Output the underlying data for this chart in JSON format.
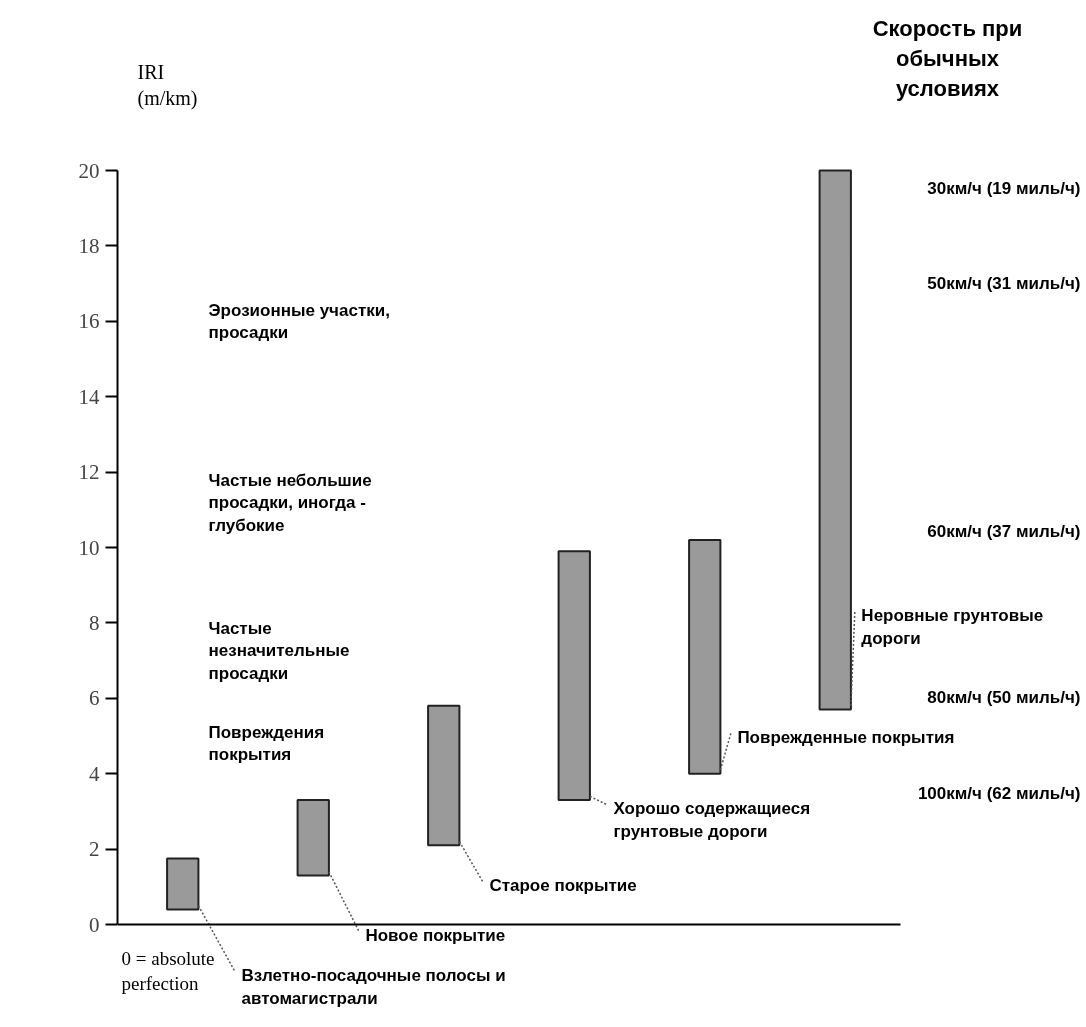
{
  "chart_data": {
    "type": "bar",
    "ylabel": "IRI\n(m/km)",
    "categories": [
      null,
      null,
      null,
      null,
      null,
      null
    ],
    "base": [
      0.4,
      1.3,
      2.1,
      3.3,
      4.0,
      5.7
    ],
    "values": [
      1.35,
      2.0,
      3.7,
      6.6,
      6.2,
      14.3
    ],
    "color": "#9a9a9a",
    "ylim": [
      0,
      20
    ],
    "yticks": [
      0,
      2,
      4,
      6,
      8,
      10,
      12,
      14,
      16,
      18,
      20
    ],
    "tick_labels": "y",
    "annotations": [
      "Скорость при обычных условиях",
      "30км/ч (19 миль/ч)",
      "50км/ч (31 миль/ч)",
      "60км/ч (37 миль/ч)",
      "80км/ч (50 миль/ч)",
      "100км/ч (62 миль/ч)",
      "Эрозионные участки, просадки",
      "Частые небольшие просадки, иногда - глубокие",
      "Частые незначительные просадки",
      "Повреждения покрытия",
      "Взлетно-посадочные полосы и автомагистрали",
      "Новое покрытие",
      "Старое покрытие",
      "Хорошо содержащиеся грунтовые дороги",
      "Поврежденные покрытия",
      "Неровные грунтовые дороги",
      "0 = absolute perfection"
    ],
    "grid": false
  }
}
